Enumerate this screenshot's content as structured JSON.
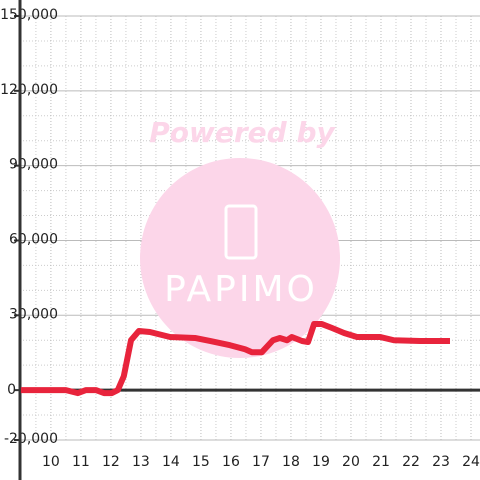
{
  "chart_data": {
    "type": "line",
    "watermark": {
      "top": "Powered by",
      "logo": "PAPIMO"
    },
    "x": [
      9.0,
      10.5,
      10.9,
      11.17,
      11.5,
      11.77,
      12.03,
      12.23,
      12.43,
      12.67,
      12.93,
      13.3,
      13.97,
      14.8,
      15.3,
      15.97,
      16.47,
      16.7,
      17.03,
      17.4,
      17.63,
      17.87,
      18.03,
      18.37,
      18.57,
      18.77,
      19.03,
      19.37,
      19.77,
      20.2,
      20.97,
      21.43,
      22.3,
      23.3
    ],
    "series": [
      {
        "color": "#e8243c",
        "values": [
          0,
          0,
          -1200,
          0,
          0,
          -1200,
          -1200,
          0,
          5600,
          20000,
          23700,
          23300,
          21300,
          20900,
          19700,
          18000,
          16400,
          15200,
          15200,
          20000,
          20900,
          20000,
          21300,
          19700,
          19300,
          26500,
          26500,
          24900,
          22900,
          21300,
          21300,
          20000,
          19700,
          19700
        ]
      }
    ],
    "xlim": [
      8.97,
      24.3
    ],
    "ylim": [
      -20000,
      150000
    ],
    "xticks": [
      10,
      11,
      12,
      13,
      14,
      15,
      16,
      17,
      18,
      19,
      20,
      21,
      22,
      23,
      24
    ],
    "xminor": [
      9.5,
      10.5,
      11.5,
      12.5,
      13.5,
      14.5,
      15.5,
      16.5,
      17.5,
      18.5,
      19.5,
      20.5,
      21.5,
      22.5,
      23.5
    ],
    "yticks": [
      {
        "value": -20000,
        "label": "-20,000"
      },
      0,
      {
        "value": 30000,
        "label": "30,000"
      },
      {
        "value": 60000,
        "label": "60,000"
      },
      {
        "value": 90000,
        "label": "90,000"
      },
      {
        "value": 120000,
        "label": "120,000"
      },
      {
        "value": 150000,
        "label": "150,000"
      }
    ],
    "yminor": [
      -10000,
      10000,
      20000,
      40000,
      50000,
      70000,
      80000,
      100000,
      110000,
      130000,
      140000
    ],
    "grid": true
  }
}
